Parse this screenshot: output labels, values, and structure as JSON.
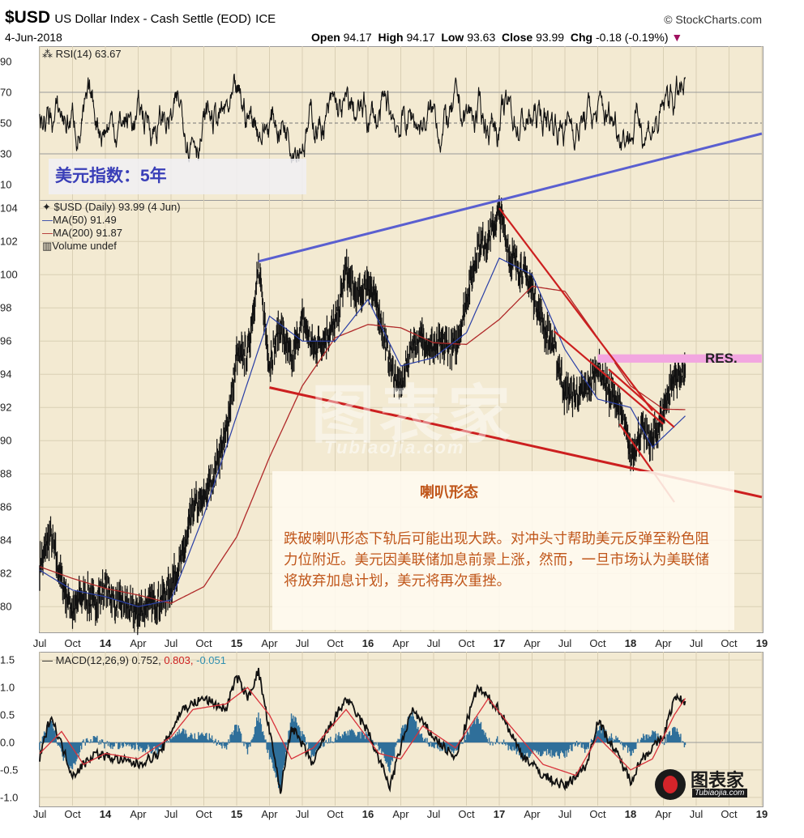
{
  "header": {
    "symbol": "$USD",
    "name": "US Dollar Index - Cash Settle (EOD)",
    "exchange": "ICE",
    "source": "© StockCharts.com",
    "date": "4-Jun-2018",
    "open_label": "Open",
    "open": "94.17",
    "high_label": "High",
    "high": "94.17",
    "low_label": "Low",
    "low": "93.63",
    "close_label": "Close",
    "close": "93.99",
    "chg_label": "Chg",
    "chg": "-0.18 (-0.19%)"
  },
  "overlay": {
    "title": "美元指数：5年",
    "pattern_label": "喇叭形态",
    "note": "跌破喇叭形态下轨后可能出现大跌。对冲头寸帮助美元反弹至粉色阻力位附近。美元因美联储加息前景上涨，然而，一旦市场认为美联储将放弃加息计划，美元将再次重挫。",
    "res_label": "RES.",
    "watermark": "图表家",
    "watermark_sub": "Tubiaojia.com",
    "logo_text": "图表家",
    "logo_sub": "Tubiaojia.com"
  },
  "legend": {
    "rsi": "RSI(14) 63.67",
    "price": "$USD (Daily) 93.99 (4 Jun)",
    "ma50": "MA(50) 91.49",
    "ma200": "MA(200) 91.87",
    "volume": "Volume undef",
    "macd_main": "MACD(12,26,9) 0.752,",
    "macd_signal": "0.803,",
    "macd_hist": "-0.051"
  },
  "colors": {
    "panel_bg": "#f3ead2",
    "price": "#111111",
    "ma50": "#2a3fa6",
    "ma200": "#b02a2a",
    "upper_line": "#5a5fd0",
    "lower_line": "#cc1f1f",
    "resistance": "#f2a6e0",
    "macd_hist": "#2f6f9a",
    "annotation": "#c0561a"
  },
  "chart_data": [
    {
      "type": "line",
      "panel": "rsi",
      "series": [
        {
          "name": "RSI(14)",
          "approx_range": [
            25,
            82
          ]
        }
      ],
      "yticks": [
        10,
        30,
        50,
        70,
        90
      ],
      "ylim": [
        0,
        100
      ],
      "reference_levels": [
        30,
        50,
        70
      ]
    },
    {
      "type": "line",
      "panel": "price",
      "yticks": [
        80,
        82,
        84,
        86,
        88,
        90,
        92,
        94,
        96,
        98,
        100,
        102,
        104
      ],
      "ylim": [
        78.5,
        104.5
      ],
      "x_labels": [
        "Jul",
        "Oct",
        "14",
        "Apr",
        "Jul",
        "Oct",
        "15",
        "Apr",
        "Jul",
        "Oct",
        "16",
        "Apr",
        "Jul",
        "Oct",
        "17",
        "Apr",
        "Jul",
        "Oct",
        "18",
        "Apr",
        "Jul",
        "Oct",
        "19"
      ],
      "x_year_labels": [
        "14",
        "15",
        "16",
        "17",
        "18",
        "19"
      ],
      "x_range": [
        "2013-07",
        "2019-01"
      ],
      "price_path": [
        {
          "x": "2013-07",
          "y": 82.5
        },
        {
          "x": "2013-08",
          "y": 84.3
        },
        {
          "x": "2013-09",
          "y": 81.5
        },
        {
          "x": "2013-10",
          "y": 79.8
        },
        {
          "x": "2013-11",
          "y": 80.8
        },
        {
          "x": "2013-12",
          "y": 80.2
        },
        {
          "x": "2014-01",
          "y": 81.3
        },
        {
          "x": "2014-02",
          "y": 80.2
        },
        {
          "x": "2014-03",
          "y": 80.0
        },
        {
          "x": "2014-04",
          "y": 79.6
        },
        {
          "x": "2014-05",
          "y": 80.2
        },
        {
          "x": "2014-06",
          "y": 80.3
        },
        {
          "x": "2014-07",
          "y": 81.3
        },
        {
          "x": "2014-08",
          "y": 82.8
        },
        {
          "x": "2014-09",
          "y": 85.9
        },
        {
          "x": "2014-10",
          "y": 86.4
        },
        {
          "x": "2014-11",
          "y": 88.3
        },
        {
          "x": "2014-12",
          "y": 90.3
        },
        {
          "x": "2015-01",
          "y": 95.0
        },
        {
          "x": "2015-02",
          "y": 95.3
        },
        {
          "x": "2015-03",
          "y": 100.3
        },
        {
          "x": "2015-04",
          "y": 94.6
        },
        {
          "x": "2015-05",
          "y": 96.9
        },
        {
          "x": "2015-06",
          "y": 94.7
        },
        {
          "x": "2015-07",
          "y": 97.3
        },
        {
          "x": "2015-08",
          "y": 95.5
        },
        {
          "x": "2015-09",
          "y": 96.2
        },
        {
          "x": "2015-10",
          "y": 97.0
        },
        {
          "x": "2015-11",
          "y": 100.2
        },
        {
          "x": "2015-12",
          "y": 98.6
        },
        {
          "x": "2016-01",
          "y": 99.6
        },
        {
          "x": "2016-02",
          "y": 97.8
        },
        {
          "x": "2016-03",
          "y": 94.6
        },
        {
          "x": "2016-04",
          "y": 93.1
        },
        {
          "x": "2016-05",
          "y": 95.9
        },
        {
          "x": "2016-06",
          "y": 96.1
        },
        {
          "x": "2016-07",
          "y": 95.5
        },
        {
          "x": "2016-08",
          "y": 95.8
        },
        {
          "x": "2016-09",
          "y": 95.4
        },
        {
          "x": "2016-10",
          "y": 98.4
        },
        {
          "x": "2016-11",
          "y": 101.5
        },
        {
          "x": "2016-12",
          "y": 102.2
        },
        {
          "x": "2017-01",
          "y": 103.8
        },
        {
          "x": "2017-02",
          "y": 101.1
        },
        {
          "x": "2017-03",
          "y": 100.4
        },
        {
          "x": "2017-04",
          "y": 99.1
        },
        {
          "x": "2017-05",
          "y": 97.0
        },
        {
          "x": "2017-06",
          "y": 95.6
        },
        {
          "x": "2017-07",
          "y": 92.9
        },
        {
          "x": "2017-08",
          "y": 92.7
        },
        {
          "x": "2017-09",
          "y": 93.1
        },
        {
          "x": "2017-10",
          "y": 94.5
        },
        {
          "x": "2017-11",
          "y": 93.0
        },
        {
          "x": "2017-12",
          "y": 92.1
        },
        {
          "x": "2018-01",
          "y": 89.1
        },
        {
          "x": "2018-02",
          "y": 90.6
        },
        {
          "x": "2018-03",
          "y": 89.9
        },
        {
          "x": "2018-04",
          "y": 91.8
        },
        {
          "x": "2018-05",
          "y": 94.0
        },
        {
          "x": "2018-06",
          "y": 93.99
        }
      ],
      "ma50_path": [
        {
          "x": "2013-07",
          "y": 82.2
        },
        {
          "x": "2013-10",
          "y": 81.0
        },
        {
          "x": "2014-01",
          "y": 80.6
        },
        {
          "x": "2014-04",
          "y": 80.0
        },
        {
          "x": "2014-07",
          "y": 80.4
        },
        {
          "x": "2014-10",
          "y": 85.5
        },
        {
          "x": "2015-01",
          "y": 91.5
        },
        {
          "x": "2015-04",
          "y": 97.5
        },
        {
          "x": "2015-07",
          "y": 96.0
        },
        {
          "x": "2015-10",
          "y": 96.0
        },
        {
          "x": "2016-01",
          "y": 98.5
        },
        {
          "x": "2016-04",
          "y": 94.5
        },
        {
          "x": "2016-07",
          "y": 95.0
        },
        {
          "x": "2016-10",
          "y": 96.5
        },
        {
          "x": "2017-01",
          "y": 101.0
        },
        {
          "x": "2017-04",
          "y": 100.0
        },
        {
          "x": "2017-07",
          "y": 95.5
        },
        {
          "x": "2017-10",
          "y": 92.5
        },
        {
          "x": "2018-01",
          "y": 92.0
        },
        {
          "x": "2018-03",
          "y": 89.6
        },
        {
          "x": "2018-06",
          "y": 91.49
        }
      ],
      "ma200_path": [
        {
          "x": "2013-07",
          "y": 82.4
        },
        {
          "x": "2013-10",
          "y": 81.7
        },
        {
          "x": "2014-01",
          "y": 81.1
        },
        {
          "x": "2014-04",
          "y": 80.7
        },
        {
          "x": "2014-07",
          "y": 80.2
        },
        {
          "x": "2014-10",
          "y": 81.2
        },
        {
          "x": "2015-01",
          "y": 84.2
        },
        {
          "x": "2015-04",
          "y": 89.0
        },
        {
          "x": "2015-07",
          "y": 93.3
        },
        {
          "x": "2015-10",
          "y": 96.2
        },
        {
          "x": "2016-01",
          "y": 97.0
        },
        {
          "x": "2016-04",
          "y": 96.8
        },
        {
          "x": "2016-07",
          "y": 95.9
        },
        {
          "x": "2016-10",
          "y": 95.8
        },
        {
          "x": "2017-01",
          "y": 97.3
        },
        {
          "x": "2017-04",
          "y": 99.3
        },
        {
          "x": "2017-07",
          "y": 99.0
        },
        {
          "x": "2017-10",
          "y": 96.2
        },
        {
          "x": "2018-01",
          "y": 93.3
        },
        {
          "x": "2018-04",
          "y": 91.9
        },
        {
          "x": "2018-06",
          "y": 91.87
        }
      ],
      "trendlines": [
        {
          "name": "upper",
          "x1": "2015-03",
          "y1": 100.8,
          "x2": "2019-01",
          "y2": 108.5
        },
        {
          "name": "lower",
          "x1": "2015-04",
          "y1": 93.2,
          "x2": "2019-01",
          "y2": 86.6
        },
        {
          "name": "down1",
          "x1": "2017-01",
          "y1": 104.0,
          "x2": "2018-03",
          "y2": 91.8
        },
        {
          "name": "down2",
          "x1": "2017-06",
          "y1": 96.6,
          "x2": "2018-04",
          "y2": 91.0
        },
        {
          "name": "down3",
          "x1": "2017-11",
          "y1": 94.3,
          "x2": "2018-05",
          "y2": 90.8
        },
        {
          "name": "down4",
          "x1": "2017-12",
          "y1": 91.0,
          "x2": "2018-05",
          "y2": 86.3
        }
      ],
      "resistance_band": {
        "x1": "2017-10",
        "x2": "2019-01",
        "y1": 94.7,
        "y2": 95.2
      }
    },
    {
      "type": "line",
      "panel": "macd",
      "yticks": [
        -1.0,
        -0.5,
        0.0,
        0.5,
        1.0,
        1.5
      ],
      "yticks_text": [
        "-1.0",
        "-0.5",
        "0.0",
        "0.5",
        "1.0",
        "1.5"
      ],
      "ylim": [
        -1.15,
        1.65
      ],
      "macd_path": [
        {
          "x": "2013-07",
          "y": -0.3
        },
        {
          "x": "2013-08",
          "y": 0.5
        },
        {
          "x": "2013-10",
          "y": -0.6
        },
        {
          "x": "2013-12",
          "y": -0.2
        },
        {
          "x": "2014-02",
          "y": -0.3
        },
        {
          "x": "2014-04",
          "y": -0.4
        },
        {
          "x": "2014-06",
          "y": -0.2
        },
        {
          "x": "2014-08",
          "y": 0.6
        },
        {
          "x": "2014-10",
          "y": 0.8
        },
        {
          "x": "2014-12",
          "y": 0.6
        },
        {
          "x": "2015-01",
          "y": 1.2
        },
        {
          "x": "2015-02",
          "y": 0.8
        },
        {
          "x": "2015-03",
          "y": 1.3
        },
        {
          "x": "2015-05",
          "y": -0.9
        },
        {
          "x": "2015-06",
          "y": 0.3
        },
        {
          "x": "2015-08",
          "y": -0.4
        },
        {
          "x": "2015-09",
          "y": 0.1
        },
        {
          "x": "2015-11",
          "y": 0.8
        },
        {
          "x": "2016-01",
          "y": 0.2
        },
        {
          "x": "2016-03",
          "y": -0.8
        },
        {
          "x": "2016-05",
          "y": 0.6
        },
        {
          "x": "2016-07",
          "y": 0.1
        },
        {
          "x": "2016-09",
          "y": -0.3
        },
        {
          "x": "2016-11",
          "y": 1.0
        },
        {
          "x": "2017-01",
          "y": 0.6
        },
        {
          "x": "2017-03",
          "y": -0.2
        },
        {
          "x": "2017-05",
          "y": -0.6
        },
        {
          "x": "2017-07",
          "y": -0.8
        },
        {
          "x": "2017-09",
          "y": -0.4
        },
        {
          "x": "2017-10",
          "y": 0.4
        },
        {
          "x": "2017-12",
          "y": -0.3
        },
        {
          "x": "2018-01",
          "y": -0.7
        },
        {
          "x": "2018-02",
          "y": -0.3
        },
        {
          "x": "2018-03",
          "y": -0.1
        },
        {
          "x": "2018-04",
          "y": 0.1
        },
        {
          "x": "2018-05",
          "y": 0.8
        },
        {
          "x": "2018-06",
          "y": 0.752
        }
      ],
      "signal_path": [
        {
          "x": "2013-07",
          "y": -0.2
        },
        {
          "x": "2013-09",
          "y": 0.2
        },
        {
          "x": "2013-11",
          "y": -0.4
        },
        {
          "x": "2014-01",
          "y": -0.2
        },
        {
          "x": "2014-04",
          "y": -0.3
        },
        {
          "x": "2014-07",
          "y": 0.1
        },
        {
          "x": "2014-09",
          "y": 0.6
        },
        {
          "x": "2014-12",
          "y": 0.7
        },
        {
          "x": "2015-02",
          "y": 1.0
        },
        {
          "x": "2015-04",
          "y": 0.5
        },
        {
          "x": "2015-06",
          "y": -0.3
        },
        {
          "x": "2015-08",
          "y": -0.1
        },
        {
          "x": "2015-11",
          "y": 0.6
        },
        {
          "x": "2016-02",
          "y": -0.2
        },
        {
          "x": "2016-04",
          "y": -0.3
        },
        {
          "x": "2016-06",
          "y": 0.3
        },
        {
          "x": "2016-09",
          "y": -0.1
        },
        {
          "x": "2016-12",
          "y": 0.8
        },
        {
          "x": "2017-02",
          "y": 0.3
        },
        {
          "x": "2017-05",
          "y": -0.4
        },
        {
          "x": "2017-08",
          "y": -0.6
        },
        {
          "x": "2017-10",
          "y": 0.1
        },
        {
          "x": "2018-01",
          "y": -0.5
        },
        {
          "x": "2018-03",
          "y": -0.3
        },
        {
          "x": "2018-05",
          "y": 0.5
        },
        {
          "x": "2018-06",
          "y": 0.803
        }
      ]
    }
  ]
}
